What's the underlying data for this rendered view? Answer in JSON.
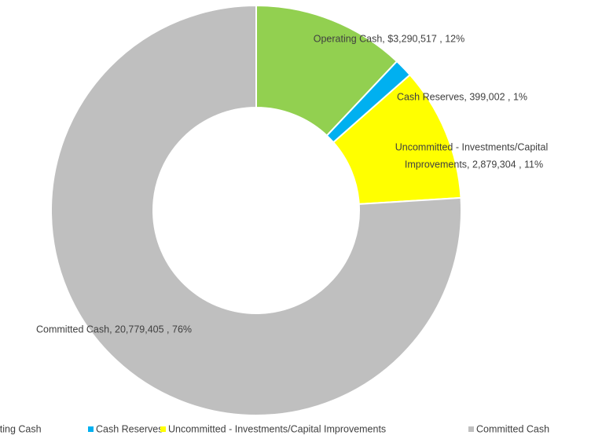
{
  "chart_data": {
    "type": "donut",
    "categories": [
      "Operating Cash",
      "Cash Reserves",
      "Uncommitted - Investments/Capital Improvements",
      "Committed Cash"
    ],
    "values": [
      3290517,
      399002,
      2879304,
      20779405
    ],
    "value_labels": [
      [
        "Operating Cash,  $3,290,517 , 12%"
      ],
      [
        "Cash Reserves,  399,002 , 1%"
      ],
      [
        "Uncommitted - Investments/Capital",
        "Improvements,  2,879,304 , 11%"
      ],
      [
        "Committed Cash,  20,779,405 , 76%"
      ]
    ],
    "colors": [
      "#92d050",
      "#00b0f0",
      "#ffff00",
      "#bfbfbf"
    ],
    "legend": "bottom"
  }
}
